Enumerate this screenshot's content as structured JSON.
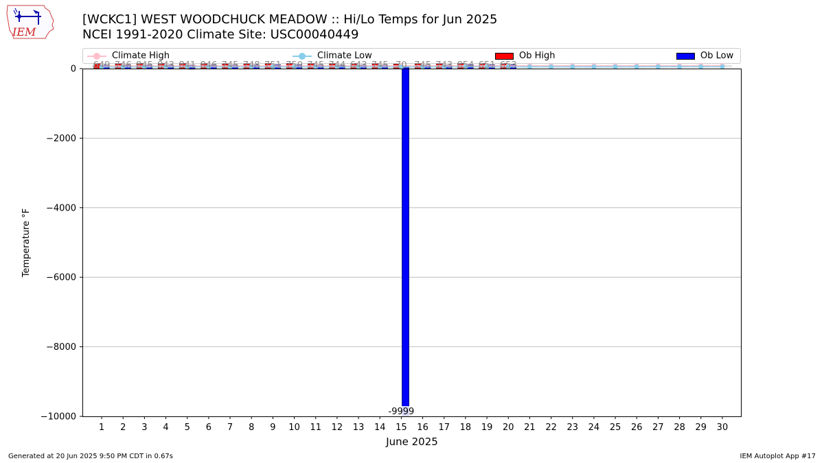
{
  "header": {
    "title_line1": "[WCKC1] WEST WOODCHUCK MEADOW :: Hi/Lo Temps for Jun 2025",
    "title_line2": "NCEI 1991-2020 Climate Site: USC00040449",
    "logo_text": "IEM"
  },
  "legend": {
    "climate_high": "Climate High",
    "climate_low": "Climate Low",
    "ob_high": "Ob High",
    "ob_low": "Ob Low"
  },
  "footer": {
    "generated": "Generated at 20 Jun 2025 9:50 PM CDT in 0.67s",
    "app": "IEM Autoplot App #17"
  },
  "colors": {
    "ob_high": "#ff0000",
    "ob_low": "#0000ff",
    "climate_high": "#ffc0cb",
    "climate_low": "#87ceeb",
    "climate_range": "#e5e5e5",
    "grid": "#b0b0b0"
  },
  "chart_data": {
    "type": "bar",
    "xlabel": "June 2025",
    "ylabel": "Temperature °F",
    "ylim": [
      -10000,
      0
    ],
    "yticks": [
      "0",
      "−2000",
      "−4000",
      "−6000",
      "−8000",
      "−10000"
    ],
    "ytick_values": [
      0,
      -2000,
      -4000,
      -6000,
      -8000,
      -10000
    ],
    "grid": "horizontal",
    "legend_position": "top",
    "categories": [
      "1",
      "2",
      "3",
      "4",
      "5",
      "6",
      "7",
      "8",
      "9",
      "10",
      "11",
      "12",
      "13",
      "14",
      "15",
      "16",
      "17",
      "18",
      "19",
      "20",
      "21",
      "22",
      "23",
      "24",
      "25",
      "26",
      "27",
      "28",
      "29",
      "30"
    ],
    "series": [
      {
        "name": "Ob High",
        "values": [
          80,
          78,
          83,
          83,
          83,
          80,
          77,
          78,
          82,
          85,
          80,
          79,
          80,
          79,
          70,
          79,
          78,
          85,
          81,
          81,
          null,
          null,
          null,
          null,
          null,
          null,
          null,
          null,
          null,
          null
        ]
      },
      {
        "name": "Ob Low",
        "values": [
          49,
          46,
          45,
          43,
          41,
          46,
          45,
          48,
          51,
          50,
          45,
          44,
          43,
          45,
          -9999,
          45,
          43,
          54,
          51,
          53,
          null,
          null,
          null,
          null,
          null,
          null,
          null,
          null,
          null,
          null
        ]
      },
      {
        "name": "Climate High",
        "values": [
          79,
          79,
          79,
          80,
          80,
          80,
          80,
          81,
          81,
          81,
          81,
          82,
          82,
          82,
          82,
          83,
          83,
          83,
          83,
          84,
          84,
          84,
          84,
          85,
          85,
          85,
          85,
          85,
          86,
          86
        ]
      },
      {
        "name": "Climate Low",
        "values": [
          45,
          45,
          45,
          46,
          46,
          46,
          46,
          47,
          47,
          47,
          47,
          47,
          48,
          48,
          48,
          48,
          48,
          49,
          49,
          49,
          49,
          50,
          50,
          50,
          50,
          50,
          51,
          51,
          51,
          51
        ]
      }
    ],
    "bar_labels": [
      "649",
      "746",
      "845",
      "843",
      "841",
      "846",
      "745",
      "748",
      "751",
      "750",
      "745",
      "744",
      "643",
      "745",
      "70",
      "745",
      "743",
      "854",
      "651",
      "653",
      "",
      "",
      "",
      "",
      "",
      "",
      "",
      "",
      "",
      ""
    ],
    "annotations": [
      "-9999"
    ]
  }
}
